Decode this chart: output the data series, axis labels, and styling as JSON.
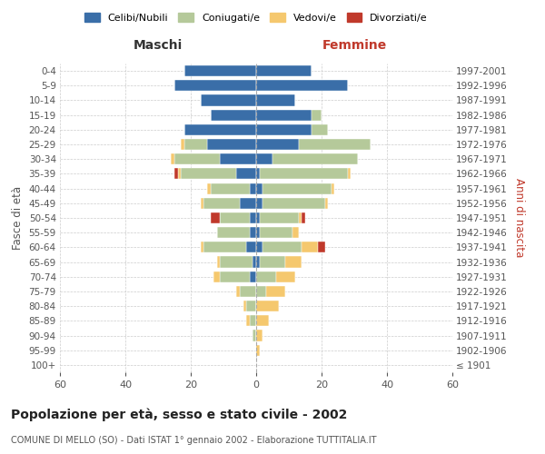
{
  "age_groups": [
    "100+",
    "95-99",
    "90-94",
    "85-89",
    "80-84",
    "75-79",
    "70-74",
    "65-69",
    "60-64",
    "55-59",
    "50-54",
    "45-49",
    "40-44",
    "35-39",
    "30-34",
    "25-29",
    "20-24",
    "15-19",
    "10-14",
    "5-9",
    "0-4"
  ],
  "birth_years": [
    "≤ 1901",
    "1902-1906",
    "1907-1911",
    "1912-1916",
    "1917-1921",
    "1922-1926",
    "1927-1931",
    "1932-1936",
    "1937-1941",
    "1942-1946",
    "1947-1951",
    "1952-1956",
    "1957-1961",
    "1962-1966",
    "1967-1971",
    "1972-1976",
    "1977-1981",
    "1982-1986",
    "1987-1991",
    "1992-1996",
    "1997-2001"
  ],
  "male_celibi": [
    0,
    0,
    0,
    0,
    0,
    0,
    2,
    1,
    3,
    2,
    2,
    5,
    2,
    6,
    11,
    15,
    22,
    14,
    17,
    25,
    22
  ],
  "male_coniugati": [
    0,
    0,
    1,
    2,
    3,
    5,
    9,
    10,
    13,
    10,
    9,
    11,
    12,
    17,
    14,
    7,
    0,
    0,
    0,
    0,
    0
  ],
  "male_vedovi": [
    0,
    0,
    0,
    1,
    1,
    1,
    2,
    1,
    1,
    0,
    0,
    1,
    1,
    1,
    1,
    1,
    0,
    0,
    0,
    0,
    0
  ],
  "male_divorziati": [
    0,
    0,
    0,
    0,
    0,
    0,
    0,
    0,
    0,
    0,
    3,
    0,
    0,
    1,
    0,
    0,
    0,
    0,
    0,
    0,
    0
  ],
  "female_celibi": [
    0,
    0,
    0,
    0,
    0,
    0,
    0,
    1,
    2,
    1,
    1,
    2,
    2,
    1,
    5,
    13,
    17,
    17,
    12,
    28,
    17
  ],
  "female_coniugati": [
    0,
    0,
    0,
    0,
    0,
    3,
    6,
    8,
    12,
    10,
    12,
    19,
    21,
    27,
    26,
    22,
    5,
    3,
    0,
    0,
    0
  ],
  "female_vedovi": [
    0,
    1,
    2,
    4,
    7,
    6,
    6,
    5,
    5,
    2,
    1,
    1,
    1,
    1,
    0,
    0,
    0,
    0,
    0,
    0,
    0
  ],
  "female_divorziati": [
    0,
    0,
    0,
    0,
    0,
    0,
    0,
    0,
    2,
    0,
    1,
    0,
    0,
    0,
    0,
    0,
    0,
    0,
    0,
    0,
    0
  ],
  "color_celibi": "#3a6ea8",
  "color_coniugati": "#b5c99a",
  "color_vedovi": "#f5c86e",
  "color_divorziati": "#c0392b",
  "title_main": "Popolazione per età, sesso e stato civile - 2002",
  "title_sub": "COMUNE DI MELLO (SO) - Dati ISTAT 1° gennaio 2002 - Elaborazione TUTTITALIA.IT",
  "xlabel_left": "Maschi",
  "xlabel_right": "Femmine",
  "ylabel_left": "Fasce di età",
  "ylabel_right": "Anni di nascita",
  "xlim": 60,
  "background_color": "#ffffff",
  "grid_color": "#cccccc"
}
